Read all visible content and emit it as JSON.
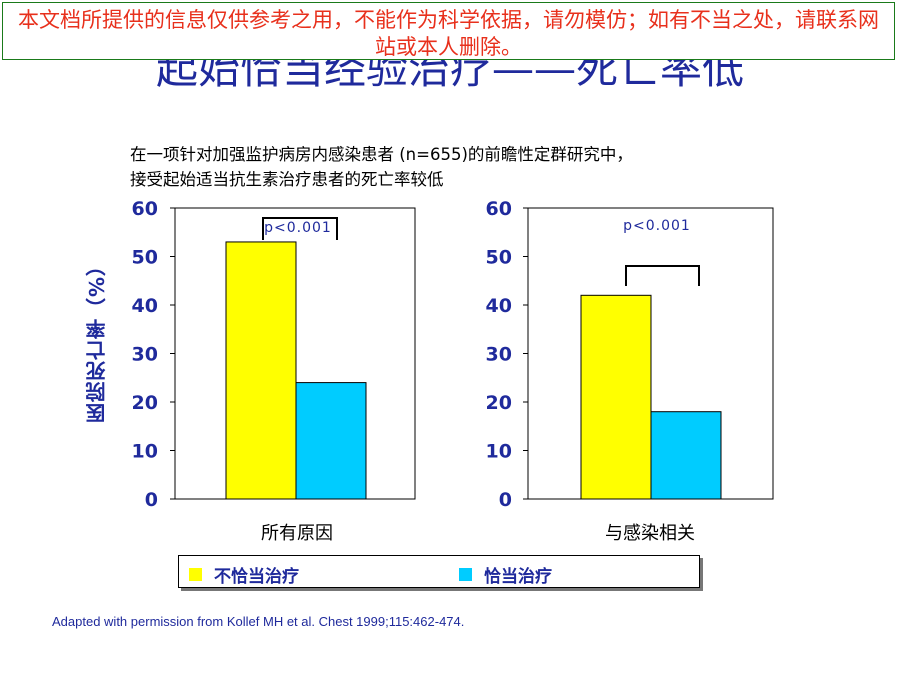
{
  "banner": {
    "text": "本文档所提供的信息仅供参考之用，不能作为科学依据，请勿模仿；如有不当之处，请联系网站或本人删除。"
  },
  "title": "起始恰当经验治疗——死亡率低",
  "intro": {
    "line1": "在一项针对加强监护病房内感染患者 (n=655)的前瞻性定群研究中，",
    "line2": "接受起始适当抗生素治疗患者的死亡率较低"
  },
  "colors": {
    "series1": "#ffff00",
    "series2": "#00ccff",
    "title": "#1f2a9c",
    "banner_text": "#e8301c",
    "banner_border": "#1a7a1a"
  },
  "chart_data": {
    "type": "bar",
    "ylabel": "医院死亡率（%）",
    "ylim": [
      0,
      60
    ],
    "yticks": [
      "0",
      "10",
      "20",
      "30",
      "40",
      "50",
      "60"
    ],
    "series": [
      {
        "name": "不恰当治疗",
        "color": "#ffff00"
      },
      {
        "name": "恰当治疗",
        "color": "#00ccff"
      }
    ],
    "panels": [
      {
        "category": "所有原因",
        "values": [
          53,
          24
        ],
        "annotation": "p<0.001"
      },
      {
        "category": "与感染相关",
        "values": [
          42,
          18
        ],
        "annotation": "p<0.001"
      }
    ]
  },
  "source": "Adapted with permission from Kollef MH et al. Chest 1999;115:462-474."
}
